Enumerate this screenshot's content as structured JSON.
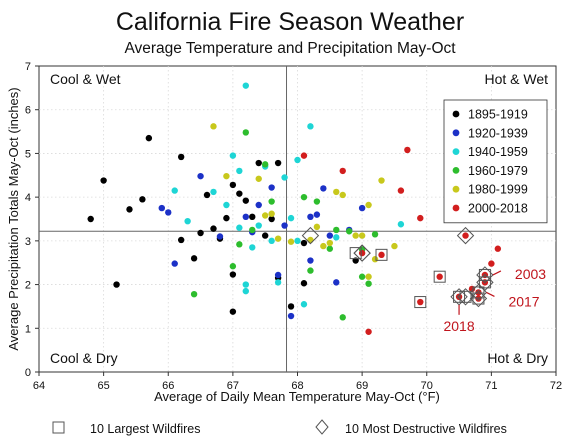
{
  "chart_data": {
    "type": "scatter",
    "title": "California Fire Season Weather",
    "subtitle": "Average Temperature and Precipitation May-Oct",
    "xlabel": "Average of Daily Mean Temperature May-Oct (°F)",
    "ylabel": "Average Precipitation Totals May-Oct (inches)",
    "xlim": [
      64,
      72
    ],
    "ylim": [
      0,
      7
    ],
    "x_ticks": [
      "64",
      "65",
      "66",
      "67",
      "68",
      "69",
      "70",
      "71",
      "72"
    ],
    "y_ticks": [
      "0",
      "1",
      "2",
      "3",
      "4",
      "5",
      "6",
      "7"
    ],
    "grid": true,
    "legend_position": "right",
    "mean_lines": {
      "x": 67.83,
      "y": 3.22
    },
    "quadrant_labels": {
      "top_left": "Cool & Wet",
      "top_right": "Hot & Wet",
      "bottom_left": "Cool & Dry",
      "bottom_right": "Hot & Dry"
    },
    "series": [
      {
        "name": "1895-1919",
        "color": "#000000",
        "points": [
          [
            64.8,
            3.5
          ],
          [
            65.0,
            4.38
          ],
          [
            65.2,
            2.0
          ],
          [
            65.4,
            3.72
          ],
          [
            65.6,
            3.95
          ],
          [
            65.7,
            5.35
          ],
          [
            66.2,
            4.92
          ],
          [
            66.2,
            3.02
          ],
          [
            66.4,
            2.6
          ],
          [
            66.5,
            3.18
          ],
          [
            66.6,
            4.05
          ],
          [
            66.7,
            3.28
          ],
          [
            66.8,
            3.05
          ],
          [
            66.9,
            3.52
          ],
          [
            67.0,
            1.38
          ],
          [
            67.0,
            2.23
          ],
          [
            67.0,
            4.28
          ],
          [
            67.1,
            4.08
          ],
          [
            67.2,
            3.92
          ],
          [
            67.3,
            3.55
          ],
          [
            67.4,
            4.78
          ],
          [
            67.5,
            3.12
          ],
          [
            67.6,
            3.5
          ],
          [
            67.7,
            2.15
          ],
          [
            67.7,
            4.78
          ],
          [
            67.9,
            1.5
          ],
          [
            68.1,
            2.95
          ],
          [
            68.1,
            2.03
          ],
          [
            68.9,
            2.55
          ]
        ]
      },
      {
        "name": "1920-1939",
        "color": "#1c31c7",
        "points": [
          [
            65.9,
            3.75
          ],
          [
            66.0,
            3.65
          ],
          [
            66.1,
            2.48
          ],
          [
            66.5,
            4.48
          ],
          [
            66.8,
            3.1
          ],
          [
            67.2,
            3.55
          ],
          [
            67.3,
            3.2
          ],
          [
            67.4,
            3.82
          ],
          [
            67.6,
            4.22
          ],
          [
            67.7,
            2.22
          ],
          [
            67.8,
            3.35
          ],
          [
            67.9,
            1.28
          ],
          [
            68.2,
            3.55
          ],
          [
            68.2,
            2.55
          ],
          [
            68.3,
            3.6
          ],
          [
            68.4,
            4.2
          ],
          [
            68.5,
            3.12
          ],
          [
            68.6,
            2.05
          ],
          [
            68.8,
            3.25
          ],
          [
            69.0,
            3.75
          ]
        ]
      },
      {
        "name": "1940-1959",
        "color": "#1ed5d5",
        "points": [
          [
            66.1,
            4.15
          ],
          [
            66.3,
            3.45
          ],
          [
            66.7,
            4.12
          ],
          [
            66.9,
            3.82
          ],
          [
            67.0,
            4.95
          ],
          [
            67.1,
            4.6
          ],
          [
            67.1,
            3.3
          ],
          [
            67.2,
            2.0
          ],
          [
            67.2,
            1.85
          ],
          [
            67.2,
            6.55
          ],
          [
            67.3,
            2.85
          ],
          [
            67.4,
            3.35
          ],
          [
            67.5,
            4.7
          ],
          [
            67.6,
            3.0
          ],
          [
            67.7,
            2.05
          ],
          [
            67.8,
            4.45
          ],
          [
            67.9,
            3.52
          ],
          [
            68.0,
            4.85
          ],
          [
            68.0,
            3.0
          ],
          [
            68.1,
            1.55
          ],
          [
            68.2,
            5.62
          ],
          [
            68.6,
            3.08
          ],
          [
            69.6,
            3.38
          ]
        ]
      },
      {
        "name": "1960-1979",
        "color": "#2dbd2d",
        "points": [
          [
            66.4,
            1.78
          ],
          [
            67.0,
            2.42
          ],
          [
            67.1,
            2.92
          ],
          [
            67.2,
            5.48
          ],
          [
            67.3,
            3.25
          ],
          [
            67.5,
            4.75
          ],
          [
            67.6,
            3.9
          ],
          [
            68.1,
            4.0
          ],
          [
            68.2,
            2.32
          ],
          [
            68.3,
            3.9
          ],
          [
            68.5,
            2.82
          ],
          [
            68.6,
            3.25
          ],
          [
            68.7,
            1.25
          ],
          [
            68.8,
            3.22
          ],
          [
            69.0,
            2.8
          ],
          [
            69.0,
            2.18
          ],
          [
            69.1,
            2.02
          ],
          [
            69.2,
            3.15
          ]
        ]
      },
      {
        "name": "1980-1999",
        "color": "#c8c81c",
        "points": [
          [
            66.7,
            5.62
          ],
          [
            66.9,
            4.48
          ],
          [
            67.4,
            4.42
          ],
          [
            67.5,
            3.58
          ],
          [
            67.6,
            3.62
          ],
          [
            67.7,
            3.05
          ],
          [
            67.9,
            2.98
          ],
          [
            68.2,
            3.02
          ],
          [
            68.3,
            3.32
          ],
          [
            68.4,
            2.88
          ],
          [
            68.5,
            2.95
          ],
          [
            68.6,
            4.12
          ],
          [
            68.7,
            4.05
          ],
          [
            68.9,
            3.12
          ],
          [
            69.0,
            3.12
          ],
          [
            69.1,
            3.82
          ],
          [
            69.1,
            2.18
          ],
          [
            69.2,
            2.58
          ],
          [
            69.3,
            4.38
          ],
          [
            69.5,
            2.88
          ]
        ]
      },
      {
        "name": "2000-2018",
        "color": "#d21e1e",
        "points": [
          [
            68.1,
            4.95
          ],
          [
            68.7,
            4.6
          ],
          [
            69.0,
            2.72
          ],
          [
            69.1,
            0.92
          ],
          [
            69.3,
            2.68
          ],
          [
            69.6,
            4.15
          ],
          [
            69.7,
            5.08
          ],
          [
            69.9,
            3.52
          ],
          [
            69.9,
            1.6
          ],
          [
            70.2,
            2.18
          ],
          [
            70.5,
            1.72
          ],
          [
            70.6,
            3.12
          ],
          [
            70.7,
            1.9
          ],
          [
            70.8,
            1.68
          ],
          [
            70.8,
            1.82
          ],
          [
            70.9,
            2.05
          ],
          [
            70.9,
            2.22
          ],
          [
            71.0,
            2.48
          ],
          [
            71.1,
            2.82
          ]
        ]
      }
    ],
    "largest_wildfires": [
      [
        68.9,
        2.72
      ],
      [
        69.3,
        2.68
      ],
      [
        69.9,
        1.6
      ],
      [
        70.2,
        2.18
      ],
      [
        70.5,
        1.72
      ],
      [
        70.6,
        1.72
      ],
      [
        70.8,
        1.68
      ],
      [
        70.8,
        1.82
      ],
      [
        70.9,
        2.05
      ],
      [
        70.9,
        2.22
      ]
    ],
    "most_destructive_wildfires": [
      [
        68.2,
        3.12
      ],
      [
        69.0,
        2.72
      ],
      [
        70.5,
        1.72
      ],
      [
        70.6,
        3.12
      ],
      [
        70.6,
        1.72
      ],
      [
        70.8,
        1.68
      ],
      [
        70.8,
        1.82
      ],
      [
        70.9,
        2.05
      ],
      [
        70.9,
        2.22
      ],
      [
        69.0,
        2.72
      ]
    ],
    "annotations": [
      {
        "text": "2003",
        "x": 70.9,
        "y": 2.22
      },
      {
        "text": "2017",
        "x": 70.8,
        "y": 1.82
      },
      {
        "text": "2018",
        "x": 70.5,
        "y": 1.72
      }
    ],
    "bottom_legend": {
      "square_label": "10 Largest Wildfires",
      "diamond_label": "10 Most Destructive Wildfires"
    }
  }
}
